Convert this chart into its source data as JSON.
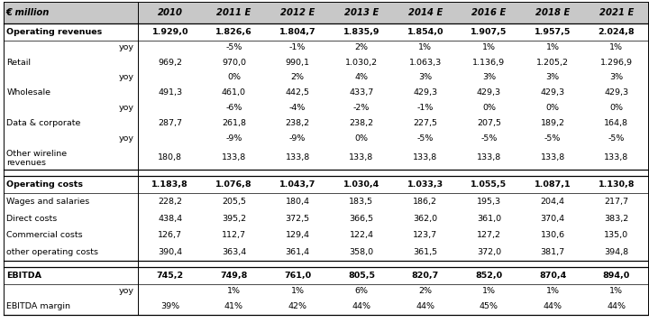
{
  "header_col": "€ million",
  "columns": [
    "2010",
    "2011 E",
    "2012 E",
    "2013 E",
    "2014 E",
    "2016 E",
    "2018 E",
    "2021 E"
  ],
  "rows": [
    {
      "label": "Operating revenues",
      "bold": true,
      "indent": 0,
      "yoy_label": "yoy",
      "yoy_vals": [
        "",
        "-5%",
        "-1%",
        "2%",
        "1%",
        "1%",
        "1%",
        "1%"
      ],
      "values": [
        "1.929,0",
        "1.826,6",
        "1.804,7",
        "1.835,9",
        "1.854,0",
        "1.907,5",
        "1.957,5",
        "2.024,8"
      ],
      "bold_vals": true,
      "has_yoy": true
    },
    {
      "label": "Retail",
      "bold": false,
      "indent": 0,
      "yoy_label": "yoy",
      "yoy_vals": [
        "",
        "0%",
        "2%",
        "4%",
        "3%",
        "3%",
        "3%",
        "3%"
      ],
      "values": [
        "969,2",
        "970,0",
        "990,1",
        "1.030,2",
        "1.063,3",
        "1.136,9",
        "1.205,2",
        "1.296,9"
      ],
      "bold_vals": false,
      "has_yoy": true
    },
    {
      "label": "Wholesale",
      "bold": false,
      "indent": 0,
      "yoy_label": "yoy",
      "yoy_vals": [
        "",
        "-6%",
        "-4%",
        "-2%",
        "-1%",
        "0%",
        "0%",
        "0%"
      ],
      "values": [
        "491,3",
        "461,0",
        "442,5",
        "433,7",
        "429,3",
        "429,3",
        "429,3",
        "429,3"
      ],
      "bold_vals": false,
      "has_yoy": true
    },
    {
      "label": "Data & corporate",
      "bold": false,
      "indent": 0,
      "yoy_label": "yoy",
      "yoy_vals": [
        "",
        "-9%",
        "-9%",
        "0%",
        "-5%",
        "-5%",
        "-5%",
        "-5%"
      ],
      "values": [
        "287,7",
        "261,8",
        "238,2",
        "238,2",
        "227,5",
        "207,5",
        "189,2",
        "164,8"
      ],
      "bold_vals": false,
      "has_yoy": true
    },
    {
      "label": "Other wireline\nrevenues",
      "bold": false,
      "indent": 0,
      "values": [
        "180,8",
        "133,8",
        "133,8",
        "133,8",
        "133,8",
        "133,8",
        "133,8",
        "133,8"
      ],
      "bold_vals": false,
      "has_yoy": false,
      "two_line": true
    },
    {
      "label": "Operating costs",
      "bold": true,
      "indent": 0,
      "values": [
        "1.183,8",
        "1.076,8",
        "1.043,7",
        "1.030,4",
        "1.033,3",
        "1.055,5",
        "1.087,1",
        "1.130,8"
      ],
      "bold_vals": true,
      "has_yoy": false,
      "section_break": true
    },
    {
      "label": "Wages and salaries",
      "bold": false,
      "indent": 0,
      "values": [
        "228,2",
        "205,5",
        "180,4",
        "183,5",
        "186,2",
        "195,3",
        "204,4",
        "217,7"
      ],
      "bold_vals": false,
      "has_yoy": false
    },
    {
      "label": "Direct costs",
      "bold": false,
      "indent": 0,
      "values": [
        "438,4",
        "395,2",
        "372,5",
        "366,5",
        "362,0",
        "361,0",
        "370,4",
        "383,2"
      ],
      "bold_vals": false,
      "has_yoy": false
    },
    {
      "label": "Commercial costs",
      "bold": false,
      "indent": 0,
      "values": [
        "126,7",
        "112,7",
        "129,4",
        "122,4",
        "123,7",
        "127,2",
        "130,6",
        "135,0"
      ],
      "bold_vals": false,
      "has_yoy": false
    },
    {
      "label": "other operating costs",
      "bold": false,
      "indent": 0,
      "values": [
        "390,4",
        "363,4",
        "361,4",
        "358,0",
        "361,5",
        "372,0",
        "381,7",
        "394,8"
      ],
      "bold_vals": false,
      "has_yoy": false
    },
    {
      "label": "EBITDA",
      "bold": true,
      "indent": 0,
      "yoy_label": "yoy",
      "yoy_vals": [
        "",
        "1%",
        "1%",
        "6%",
        "2%",
        "1%",
        "1%",
        "1%"
      ],
      "values": [
        "745,2",
        "749,8",
        "761,0",
        "805,5",
        "820,7",
        "852,0",
        "870,4",
        "894,0"
      ],
      "bold_vals": true,
      "has_yoy": true,
      "section_break": true
    },
    {
      "label": "EBITDA margin",
      "bold": false,
      "indent": 0,
      "values": [
        "39%",
        "41%",
        "42%",
        "44%",
        "44%",
        "45%",
        "44%",
        "44%"
      ],
      "bold_vals": false,
      "has_yoy": false
    }
  ],
  "bg_header": "#c8c8c8",
  "bg_white": "#ffffff",
  "text_color": "#000000",
  "border_color": "#000000",
  "font_size": 6.8,
  "header_font_size": 7.2
}
